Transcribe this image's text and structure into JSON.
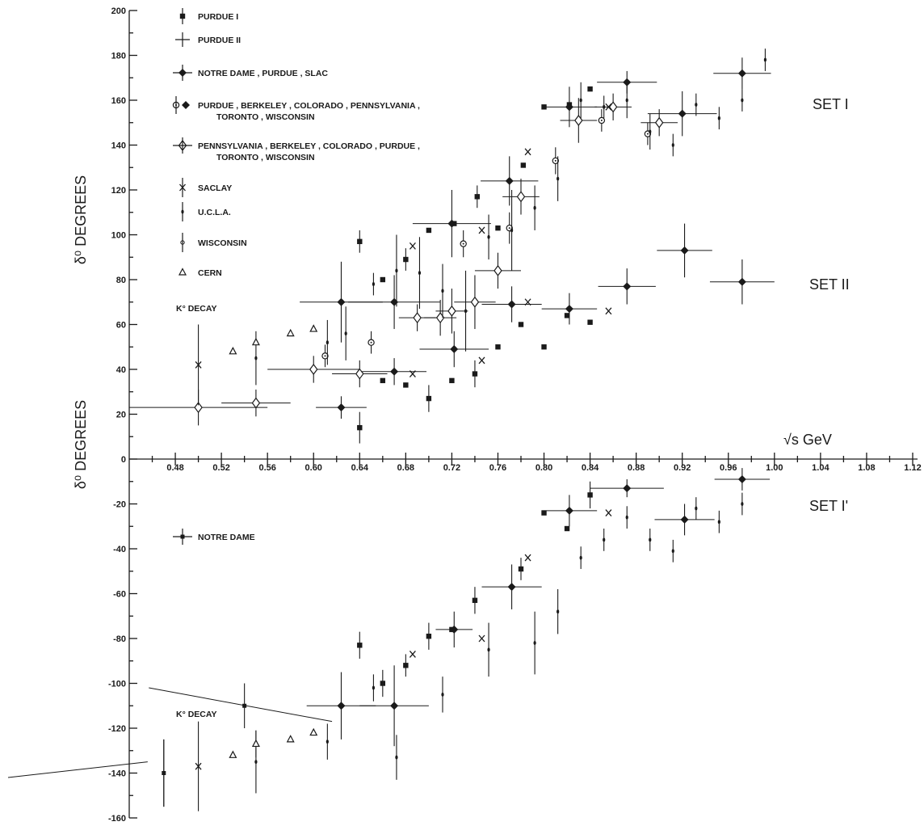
{
  "chart_data": {
    "type": "scatter",
    "title": "",
    "xlabel": "√s GeV",
    "ylabel_upper": "δ⁰ DEGREES",
    "ylabel_lower": "δ⁰ DEGREES",
    "xlim": [
      0.44,
      1.12
    ],
    "ylim": [
      -160,
      200
    ],
    "x_ticks": [
      "0.48",
      "0.52",
      "0.56",
      "0.60",
      "0.64",
      "0.68",
      "0.72",
      "0.76",
      "0.80",
      "0.84",
      "0.88",
      "0.92",
      "0.96",
      "1.00",
      "1.04",
      "1.08",
      "1.12"
    ],
    "y_ticks": [
      "200",
      "180",
      "160",
      "140",
      "120",
      "100",
      "80",
      "60",
      "40",
      "20",
      "0",
      "-20",
      "-40",
      "-60",
      "-80",
      "-100",
      "-120",
      "-140",
      "-160"
    ],
    "grid": false,
    "legend_position": "top-left",
    "set_labels": [
      "SET I",
      "SET II",
      "SET I'"
    ],
    "annotations": [
      "K° DECAY",
      "K° DECAY"
    ],
    "legend": [
      {
        "label": "PURDUE I",
        "marker": "square"
      },
      {
        "label": "PURDUE II",
        "marker": "cross"
      },
      {
        "label": "NOTRE DAME , PURDUE , SLAC",
        "marker": "diamond-filled"
      },
      {
        "label": "PURDUE , BERKELEY , COLORADO , PENNSYLVANIA ,",
        "label2": "TORONTO , WISCONSIN",
        "marker": "circle-dot-diamond"
      },
      {
        "label": "PENNSYLVANIA , BERKELEY , COLORADO , PURDUE ,",
        "label2": "TORONTO , WISCONSIN",
        "marker": "diamond-open"
      },
      {
        "label": "SACLAY",
        "marker": "saclay"
      },
      {
        "label": "U.C.L.A.",
        "marker": "small-dot"
      },
      {
        "label": "WISCONSIN",
        "marker": "small-circle"
      },
      {
        "label": "CERN",
        "marker": "triangle"
      },
      {
        "label": "NOTRE DAME",
        "marker": "cross-square"
      }
    ],
    "series": [
      {
        "name": "PURDUE I",
        "marker": "square",
        "points": [
          [
            0.64,
            97,
            5,
            0,
            0
          ],
          [
            0.66,
            80,
            0,
            0,
            0
          ],
          [
            0.68,
            89,
            5,
            0,
            0
          ],
          [
            0.7,
            102,
            0,
            0,
            0
          ],
          [
            0.722,
            105,
            0,
            0,
            0
          ],
          [
            0.742,
            117,
            5,
            0,
            0
          ],
          [
            0.76,
            103,
            0,
            0,
            0
          ],
          [
            0.782,
            131,
            0,
            0,
            0
          ],
          [
            0.8,
            157,
            0,
            0,
            0
          ],
          [
            0.822,
            158,
            0,
            0,
            0
          ],
          [
            0.84,
            165,
            0,
            0,
            0
          ],
          [
            0.64,
            14,
            7,
            0,
            0
          ],
          [
            0.66,
            35,
            0,
            0,
            0
          ],
          [
            0.68,
            33,
            0,
            0,
            0
          ],
          [
            0.7,
            27,
            6,
            0,
            0
          ],
          [
            0.72,
            35,
            0,
            0,
            0
          ],
          [
            0.74,
            38,
            6,
            0,
            0
          ],
          [
            0.76,
            50,
            0,
            0,
            0
          ],
          [
            0.78,
            60,
            0,
            0,
            0
          ],
          [
            0.8,
            50,
            0,
            0,
            0
          ],
          [
            0.82,
            64,
            0,
            0,
            0
          ],
          [
            0.84,
            61,
            0,
            0,
            0
          ],
          [
            0.64,
            -83,
            6,
            0,
            0
          ],
          [
            0.66,
            -100,
            6,
            0,
            0
          ],
          [
            0.68,
            -92,
            5,
            0,
            0
          ],
          [
            0.7,
            -79,
            6,
            0,
            0
          ],
          [
            0.72,
            -76,
            0,
            0,
            0
          ],
          [
            0.74,
            -63,
            6,
            0,
            0
          ],
          [
            0.78,
            -49,
            5,
            0,
            0
          ],
          [
            0.8,
            -24,
            0,
            0,
            0
          ],
          [
            0.82,
            -31,
            0,
            0,
            0
          ],
          [
            0.84,
            -16,
            6,
            0,
            0
          ]
        ]
      },
      {
        "name": "NOTRE DAME , PURDUE , SLAC",
        "marker": "diamond-filled",
        "points": [
          [
            0.624,
            70,
            18,
            0.036,
            0.036
          ],
          [
            0.67,
            70,
            12,
            0.04,
            0.04
          ],
          [
            0.72,
            105,
            15,
            0.034,
            0.034
          ],
          [
            0.77,
            124,
            11,
            0.025,
            0.025
          ],
          [
            0.822,
            157,
            9,
            0.024,
            0.024
          ],
          [
            0.872,
            168,
            5,
            0.026,
            0.026
          ],
          [
            0.92,
            154,
            10,
            0.03,
            0.03
          ],
          [
            0.972,
            172,
            7,
            0.025,
            0.025
          ],
          [
            0.624,
            23,
            5,
            0.022,
            0.022
          ],
          [
            0.67,
            39,
            6,
            0.028,
            0.028
          ],
          [
            0.722,
            49,
            8,
            0.03,
            0.03
          ],
          [
            0.772,
            69,
            8,
            0.026,
            0.026
          ],
          [
            0.822,
            67,
            7,
            0.024,
            0.024
          ],
          [
            0.872,
            77,
            8,
            0.025,
            0.025
          ],
          [
            0.922,
            93,
            12,
            0.024,
            0.024
          ],
          [
            0.972,
            79,
            10,
            0.028,
            0.028
          ],
          [
            0.624,
            -110,
            15,
            0.03,
            0.03
          ],
          [
            0.67,
            -110,
            18,
            0.03,
            0.03
          ],
          [
            0.722,
            -76,
            8,
            0.016,
            0.016
          ],
          [
            0.772,
            -57,
            10,
            0.026,
            0.026
          ],
          [
            0.822,
            -23,
            7,
            0.024,
            0.024
          ],
          [
            0.872,
            -13,
            4,
            0.032,
            0.032
          ],
          [
            0.922,
            -27,
            7,
            0.026,
            0.026
          ],
          [
            0.972,
            -9,
            5,
            0.024,
            0.024
          ]
        ]
      },
      {
        "name": "PURDUE , BERKELEY , COLORADO , PENNSYLVANIA , TORONTO , WISCONSIN",
        "marker": "circle-dot",
        "points": [
          [
            0.61,
            46,
            5,
            0,
            0
          ],
          [
            0.65,
            52,
            5,
            0,
            0
          ],
          [
            0.73,
            96,
            6,
            0,
            0
          ],
          [
            0.77,
            103,
            7,
            0,
            0
          ],
          [
            0.81,
            133,
            6,
            0,
            0
          ],
          [
            0.85,
            151,
            5,
            0,
            0
          ],
          [
            0.89,
            145,
            5,
            0,
            0
          ]
        ]
      },
      {
        "name": "PENNSYLVANIA , BERKELEY , COLORADO , PURDUE , TORONTO , WISCONSIN",
        "marker": "diamond-open",
        "points": [
          [
            0.5,
            23,
            8,
            0.06,
            0.06
          ],
          [
            0.55,
            25,
            6,
            0.03,
            0.03
          ],
          [
            0.6,
            40,
            6,
            0.04,
            0.04
          ],
          [
            0.64,
            38,
            6,
            0.024,
            0.024
          ],
          [
            0.69,
            63,
            6,
            0.016,
            0.016
          ],
          [
            0.71,
            63,
            8,
            0.014,
            0.014
          ],
          [
            0.72,
            66,
            10,
            0.014,
            0.014
          ],
          [
            0.74,
            70,
            12,
            0.018,
            0.018
          ],
          [
            0.76,
            84,
            8,
            0.02,
            0.02
          ],
          [
            0.78,
            117,
            8,
            0.016,
            0.016
          ],
          [
            0.83,
            151,
            10,
            0.016,
            0.016
          ],
          [
            0.86,
            157,
            6,
            0.016,
            0.016
          ],
          [
            0.9,
            150,
            6,
            0.016,
            0.016
          ]
        ]
      },
      {
        "name": "SACLAY",
        "marker": "saclay",
        "points": [
          [
            0.5,
            42,
            18,
            0,
            0
          ],
          [
            0.686,
            95,
            0,
            0,
            0
          ],
          [
            0.746,
            102,
            0,
            0,
            0
          ],
          [
            0.786,
            137,
            0,
            0,
            0
          ],
          [
            0.856,
            157,
            0,
            0,
            0
          ],
          [
            0.686,
            38,
            0,
            0,
            0
          ],
          [
            0.746,
            44,
            0,
            0,
            0
          ],
          [
            0.786,
            70,
            0,
            0,
            0
          ],
          [
            0.856,
            66,
            0,
            0,
            0
          ],
          [
            0.5,
            -137,
            20,
            0,
            0
          ],
          [
            0.686,
            -87,
            0,
            0,
            0
          ],
          [
            0.746,
            -80,
            0,
            0,
            0
          ],
          [
            0.786,
            -44,
            0,
            0,
            0
          ],
          [
            0.856,
            -24,
            0,
            0,
            0
          ]
        ]
      },
      {
        "name": "U.C.L.A.",
        "marker": "small-dot",
        "points": [
          [
            0.55,
            45,
            12,
            0,
            0
          ],
          [
            0.612,
            52,
            10,
            0,
            0
          ],
          [
            0.628,
            56,
            12,
            0,
            0
          ],
          [
            0.652,
            78,
            5,
            0,
            0
          ],
          [
            0.672,
            84,
            16,
            0,
            0
          ],
          [
            0.692,
            83,
            16,
            0,
            0
          ],
          [
            0.712,
            75,
            12,
            0,
            0
          ],
          [
            0.732,
            66,
            18,
            0,
            0
          ],
          [
            0.752,
            99,
            10,
            0,
            0
          ],
          [
            0.772,
            102,
            18,
            0,
            0
          ],
          [
            0.792,
            112,
            10,
            0,
            0
          ],
          [
            0.812,
            125,
            10,
            0,
            0
          ],
          [
            0.832,
            160,
            8,
            0,
            0
          ],
          [
            0.852,
            157,
            5,
            0,
            0
          ],
          [
            0.872,
            160,
            8,
            0,
            0
          ],
          [
            0.892,
            146,
            8,
            0,
            0
          ],
          [
            0.912,
            140,
            5,
            0,
            0
          ],
          [
            0.932,
            158,
            5,
            0,
            0
          ],
          [
            0.952,
            152,
            5,
            0,
            0
          ],
          [
            0.972,
            160,
            5,
            0,
            0
          ],
          [
            0.992,
            178,
            5,
            0,
            0
          ],
          [
            0.55,
            -135,
            14,
            0,
            0
          ],
          [
            0.612,
            -126,
            8,
            0,
            0
          ],
          [
            0.652,
            -102,
            6,
            0,
            0
          ],
          [
            0.672,
            -133,
            10,
            0,
            0
          ],
          [
            0.712,
            -105,
            8,
            0,
            0
          ],
          [
            0.752,
            -85,
            12,
            0,
            0
          ],
          [
            0.792,
            -82,
            14,
            0,
            0
          ],
          [
            0.812,
            -68,
            10,
            0,
            0
          ],
          [
            0.832,
            -44,
            5,
            0,
            0
          ],
          [
            0.852,
            -36,
            5,
            0,
            0
          ],
          [
            0.872,
            -26,
            5,
            0,
            0
          ],
          [
            0.892,
            -36,
            5,
            0,
            0
          ],
          [
            0.912,
            -41,
            5,
            0,
            0
          ],
          [
            0.932,
            -22,
            5,
            0,
            0
          ],
          [
            0.952,
            -28,
            5,
            0,
            0
          ],
          [
            0.972,
            -20,
            5,
            0,
            0
          ]
        ]
      },
      {
        "name": "CERN",
        "marker": "triangle",
        "points": [
          [
            0.53,
            48,
            0,
            0,
            0
          ],
          [
            0.55,
            52,
            0,
            0,
            0
          ],
          [
            0.58,
            56,
            0,
            0,
            0
          ],
          [
            0.6,
            58,
            0,
            0,
            0
          ],
          [
            0.53,
            -132,
            0,
            0,
            0
          ],
          [
            0.55,
            -127,
            6,
            0,
            0
          ],
          [
            0.58,
            -125,
            0,
            0,
            0
          ],
          [
            0.6,
            -122,
            0,
            0,
            0
          ]
        ]
      },
      {
        "name": "NOTRE DAME",
        "marker": "cross-square",
        "points": [
          [
            0.47,
            -140,
            15,
            0,
            0
          ],
          [
            0.54,
            -110,
            10,
            0,
            0
          ]
        ]
      }
    ]
  }
}
